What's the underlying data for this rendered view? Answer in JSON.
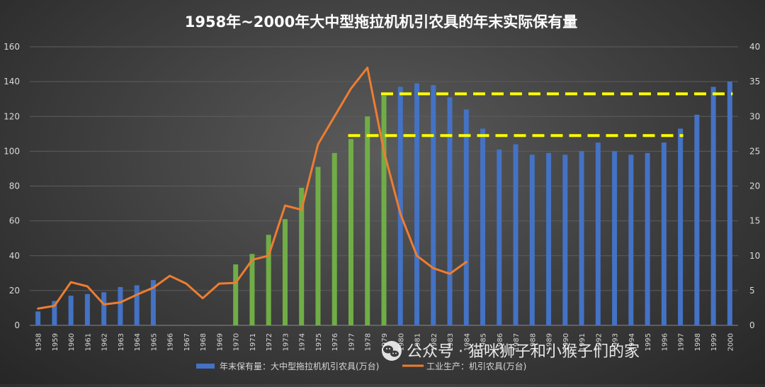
{
  "chart_data": {
    "type": "bar",
    "title": "1958年~2000年大中型拖拉机机引农具的年末实际保有量",
    "categories": [
      "1958",
      "1959",
      "1960",
      "1961",
      "1962",
      "1963",
      "1964",
      "1965",
      "1966",
      "1967",
      "1968",
      "1969",
      "1970",
      "1971",
      "1972",
      "1973",
      "1974",
      "1975",
      "1976",
      "1977",
      "1978",
      "1979",
      "1980",
      "1981",
      "1982",
      "1983",
      "1984",
      "1985",
      "1986",
      "1987",
      "1988",
      "1989",
      "1990",
      "1991",
      "1992",
      "1993",
      "1994",
      "1995",
      "1996",
      "1997",
      "1998",
      "1999",
      "2000"
    ],
    "y_left": {
      "min": 0,
      "max": 160,
      "ticks": [
        "0",
        "20",
        "40",
        "60",
        "80",
        "100",
        "120",
        "140",
        "160"
      ]
    },
    "y_right": {
      "min": 0,
      "max": 40,
      "ticks": [
        "0",
        "5",
        "10",
        "15",
        "20",
        "25",
        "30",
        "35",
        "40"
      ]
    },
    "grid": true,
    "series": [
      {
        "name": "年末保有量：大中型拖拉机机引农具(万台)",
        "type": "bar",
        "axis": "left",
        "color": "#4472c4",
        "highlight_color": "#70ad47",
        "highlight_range": [
          "1970",
          "1979"
        ],
        "values": [
          8,
          14,
          17,
          18,
          19,
          22,
          23,
          26,
          null,
          null,
          null,
          null,
          35,
          41,
          52,
          61,
          79,
          91,
          99,
          107,
          120,
          132,
          137,
          139,
          138,
          131,
          124,
          113,
          101,
          104,
          98,
          99,
          98,
          100,
          105,
          100,
          98,
          99,
          105,
          113,
          121,
          137,
          140
        ]
      },
      {
        "name": "工业生产：机引农具(万台)",
        "type": "line",
        "axis": "right",
        "color": "#ed7d31",
        "values": [
          2.4,
          2.8,
          6.2,
          5.6,
          3.0,
          3.3,
          4.4,
          5.4,
          7.1,
          6.0,
          3.9,
          6.0,
          6.1,
          9.4,
          10.0,
          17.2,
          16.6,
          26.0,
          30.0,
          34.0,
          37.0,
          25.0,
          16.0,
          10.0,
          8.2,
          7.4,
          9.1,
          null,
          null,
          null,
          null,
          null,
          null,
          null,
          null,
          null,
          null,
          null,
          null,
          null,
          null,
          null,
          null
        ]
      }
    ],
    "reference_lines": [
      {
        "label": "",
        "axis": "left",
        "y": 133,
        "from": "1979",
        "to": "2000",
        "style": "dashed",
        "color": "#ffff00"
      },
      {
        "label": "",
        "axis": "left",
        "y": 109,
        "from": "1977",
        "to": "1997",
        "style": "dashed",
        "color": "#ffff00"
      }
    ],
    "legend_position": "bottom"
  },
  "watermark": {
    "icon": "wechat-icon",
    "text": "公众号 · 猫咪狮子和小猴子们的家"
  }
}
